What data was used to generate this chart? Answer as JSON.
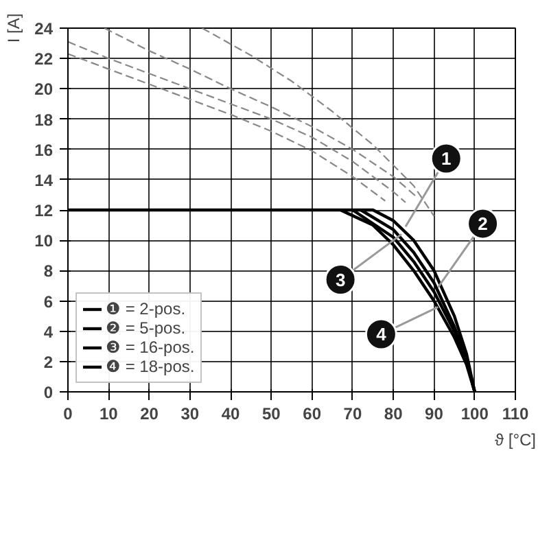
{
  "chart_data": {
    "type": "line",
    "xlabel": "ϑ [°C]",
    "ylabel": "I [A]",
    "xlim": [
      0,
      110
    ],
    "ylim": [
      0,
      24
    ],
    "xticks": [
      0,
      10,
      20,
      30,
      40,
      50,
      60,
      70,
      80,
      90,
      100,
      110
    ],
    "yticks": [
      0,
      2,
      4,
      6,
      8,
      10,
      12,
      14,
      16,
      18,
      20,
      22,
      24
    ],
    "grid": true,
    "legend": "bottom left",
    "marker": "none",
    "series": [
      {
        "name": "❶ = 2-pos.",
        "color": "#000000",
        "line_style": "solid",
        "x": [
          0,
          75,
          80,
          85,
          90,
          95,
          98,
          100
        ],
        "values": [
          12,
          12,
          11.3,
          10,
          8,
          5,
          2.5,
          0
        ]
      },
      {
        "name": "❷ = 5-pos.",
        "color": "#000000",
        "line_style": "solid",
        "x": [
          72,
          80,
          85,
          90,
          95,
          98,
          100
        ],
        "values": [
          12,
          10.7,
          9.2,
          7.2,
          4.3,
          2.2,
          0
        ]
      },
      {
        "name": "❸ = 16-pos.",
        "color": "#000000",
        "line_style": "solid",
        "x": [
          70,
          80,
          85,
          90,
          95,
          98,
          100
        ],
        "values": [
          12,
          10.2,
          8.6,
          6.6,
          4,
          2,
          0
        ]
      },
      {
        "name": "❹ = 18-pos.",
        "color": "#000000",
        "line_style": "solid",
        "x": [
          67,
          75,
          80,
          85,
          90,
          95,
          98,
          100
        ],
        "values": [
          12,
          11,
          9.7,
          8,
          6,
          3.6,
          1.8,
          0
        ]
      },
      {
        "color": "#888888",
        "line_style": "dashed",
        "x": [
          33,
          45,
          55,
          65,
          75,
          85,
          90
        ],
        "values": [
          24,
          22.2,
          20.5,
          18.5,
          16.3,
          13.6,
          11.6
        ]
      },
      {
        "color": "#888888",
        "line_style": "dashed",
        "x": [
          9,
          20,
          30,
          40,
          50,
          60,
          70,
          80,
          86
        ],
        "values": [
          24,
          22.5,
          21.3,
          20,
          18.8,
          17.5,
          16,
          14.2,
          12.8
        ]
      },
      {
        "color": "#888888",
        "line_style": "dashed",
        "x": [
          0,
          10,
          20,
          30,
          40,
          50,
          60,
          70,
          80,
          83
        ],
        "values": [
          23.1,
          22,
          21,
          20,
          19,
          18,
          16.8,
          15.2,
          13.2,
          12.5
        ]
      },
      {
        "color": "#888888",
        "line_style": "dashed",
        "x": [
          0,
          10,
          20,
          30,
          40,
          50,
          60,
          70,
          78
        ],
        "values": [
          22.3,
          21.3,
          20.3,
          19.3,
          18.3,
          17.2,
          15.9,
          14.2,
          12.6
        ]
      }
    ],
    "annotations": [
      {
        "text": "1",
        "x": 83,
        "y": 10.9
      },
      {
        "text": "2",
        "x": 91,
        "y": 6.9
      },
      {
        "text": "3",
        "x": 82,
        "y": 10.4
      },
      {
        "text": "4",
        "x": 91,
        "y": 5.6
      }
    ]
  }
}
